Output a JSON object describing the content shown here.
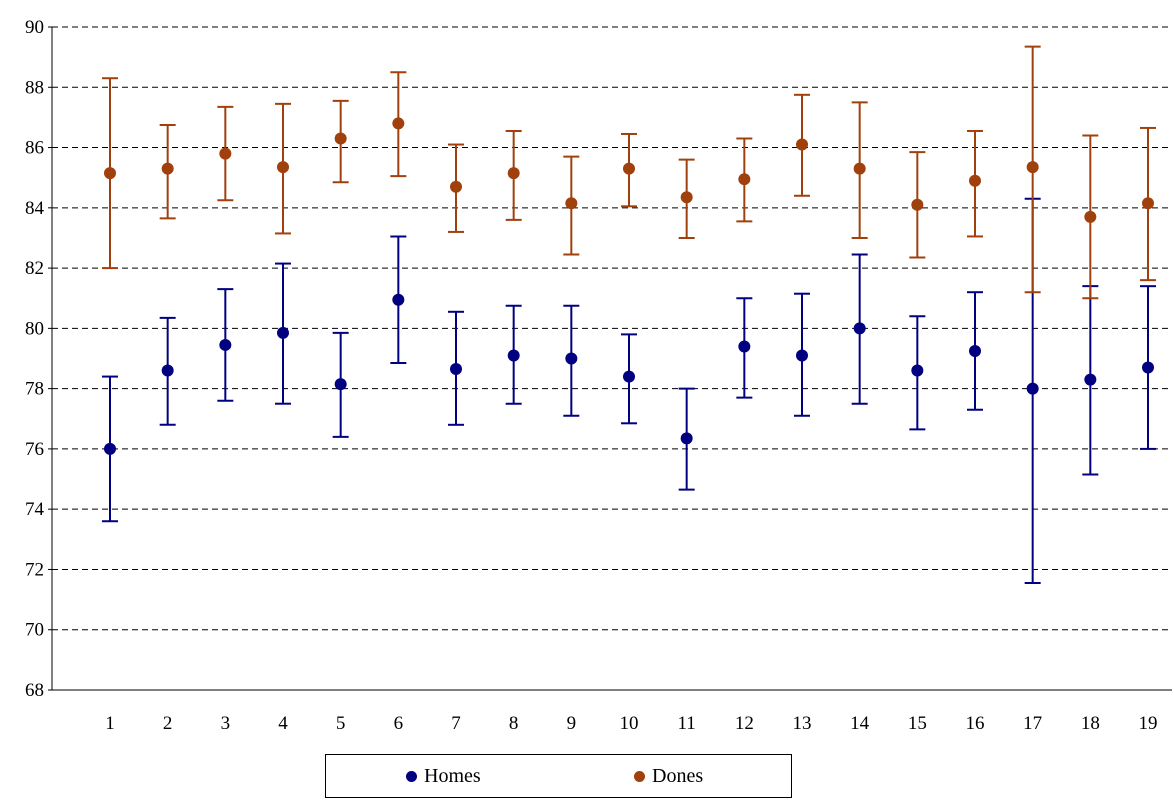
{
  "chart_data": {
    "type": "scatter",
    "title": "",
    "xlabel": "",
    "ylabel": "",
    "categories": [
      "1",
      "2",
      "3",
      "4",
      "5",
      "6",
      "7",
      "8",
      "9",
      "10",
      "11",
      "12",
      "13",
      "14",
      "15",
      "16",
      "17",
      "18",
      "19"
    ],
    "ylim": [
      68,
      90
    ],
    "yticks": [
      "68",
      "70",
      "72",
      "74",
      "76",
      "78",
      "80",
      "82",
      "84",
      "86",
      "88",
      "90"
    ],
    "grid": "horizontal dashed",
    "legend_position": "bottom",
    "series": [
      {
        "name": "Homes",
        "color": "#000080",
        "values": [
          76.0,
          78.6,
          79.45,
          79.85,
          78.15,
          80.95,
          78.65,
          79.1,
          79.0,
          78.4,
          76.35,
          79.4,
          79.1,
          80.0,
          78.6,
          79.25,
          78.0,
          78.3,
          78.7
        ],
        "upper": [
          78.4,
          80.35,
          81.3,
          82.15,
          79.85,
          83.05,
          80.55,
          80.75,
          80.75,
          79.8,
          78.0,
          81.0,
          81.15,
          82.45,
          80.4,
          81.2,
          84.3,
          81.4,
          81.4
        ],
        "lower": [
          73.6,
          76.8,
          77.6,
          77.5,
          76.4,
          78.85,
          76.8,
          77.5,
          77.1,
          76.85,
          74.65,
          77.7,
          77.1,
          77.5,
          76.65,
          77.3,
          71.55,
          75.15,
          76.0
        ]
      },
      {
        "name": "Dones",
        "color": "#A0400C",
        "values": [
          85.15,
          85.3,
          85.8,
          85.35,
          86.3,
          86.8,
          84.7,
          85.15,
          84.15,
          85.3,
          84.35,
          84.95,
          86.1,
          85.3,
          84.1,
          84.9,
          85.35,
          83.7,
          84.15
        ],
        "upper": [
          88.3,
          86.75,
          87.35,
          87.45,
          87.55,
          88.5,
          86.1,
          86.55,
          85.7,
          86.45,
          85.6,
          86.3,
          87.75,
          87.5,
          85.85,
          86.55,
          89.35,
          86.4,
          86.65
        ],
        "lower": [
          82.0,
          83.65,
          84.25,
          83.15,
          84.85,
          85.05,
          83.2,
          83.6,
          82.45,
          84.05,
          83.0,
          83.55,
          84.4,
          83.0,
          82.35,
          83.05,
          81.2,
          81.0,
          81.6
        ]
      }
    ]
  },
  "legend": {
    "homes_label": "Homes",
    "dones_label": "Dones"
  }
}
